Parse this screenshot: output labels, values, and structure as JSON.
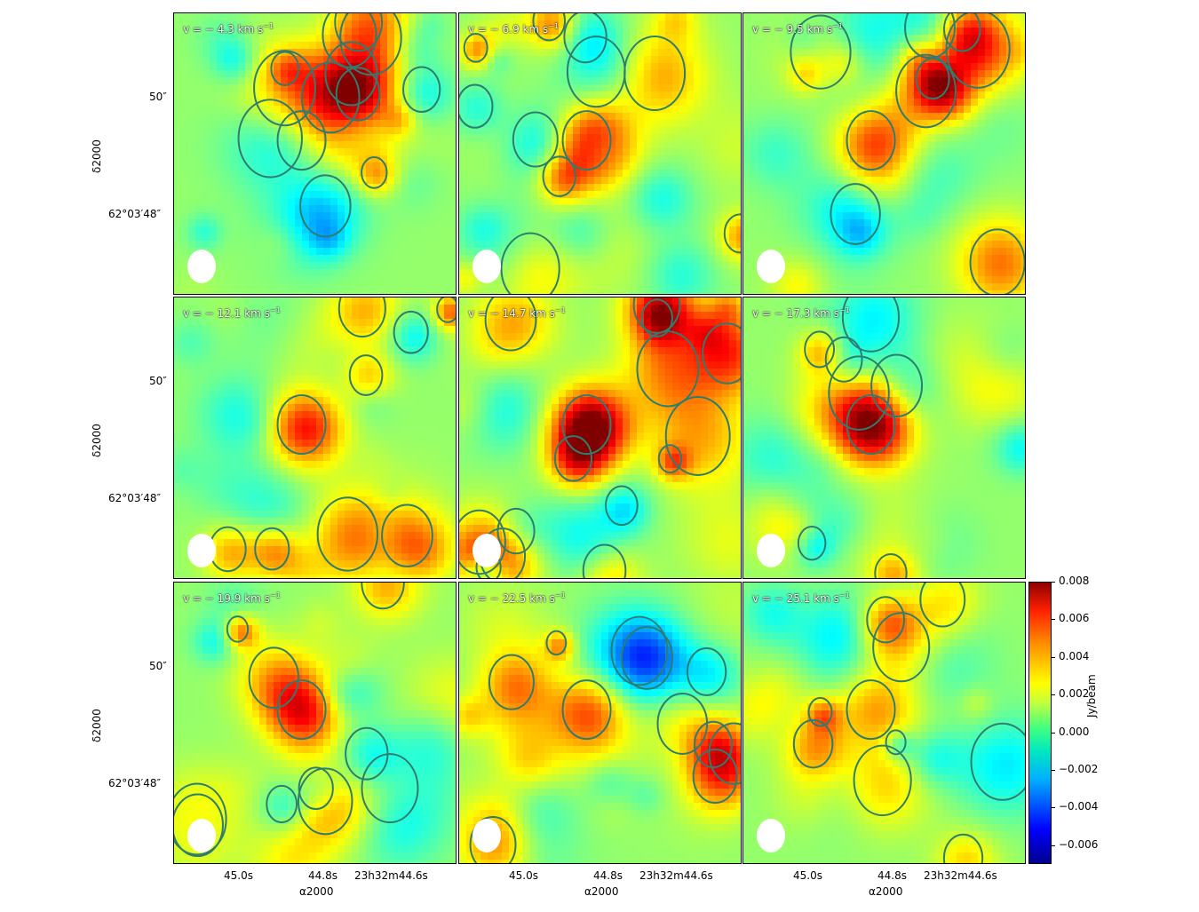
{
  "chart_data": {
    "type": "heatmap",
    "panel_labels": [
      "v = − 4.3 km s−1",
      "v = − 6.9 km s−1",
      "v = − 9.5 km s−1",
      "v = − 12.1 km s−1",
      "v = − 14.7 km s−1",
      "v = − 17.3 km s−1",
      "v = − 19.9 km s−1",
      "v = − 22.5 km s−1",
      "v = − 25.1 km s−1"
    ],
    "velocities_km_s": [
      -4.3,
      -6.9,
      -9.5,
      -12.1,
      -14.7,
      -17.3,
      -19.9,
      -22.5,
      -25.1
    ],
    "ytick_labels": [
      "50″",
      "62°03′48″"
    ],
    "xtick_labels": [
      "45.0s",
      "44.8s",
      "23h32m44.6s"
    ],
    "ylabel": "δ2000",
    "xlabel": "α2000",
    "colorbar": {
      "label": "Jy/beam",
      "ticks": [
        0.008,
        0.006,
        0.004,
        0.002,
        0.0,
        -0.002,
        -0.004,
        -0.006
      ],
      "tick_labels": [
        "0.008",
        "0.006",
        "0.004",
        "0.002",
        "0.000",
        "−0.002",
        "−0.004",
        "−0.006"
      ],
      "range": [
        -0.007,
        0.008
      ],
      "colormap": "jet"
    },
    "peak_emission_panel": "v = − 14.7 km s−1"
  },
  "v_prefix": "v = − ",
  "v_unit": " km s",
  "v_sup": "−1",
  "v_values": [
    "4.3",
    "6.9",
    "9.5",
    "12.1",
    "14.7",
    "17.3",
    "19.9",
    "22.5",
    "25.1"
  ],
  "colors": {
    "jet_low": "#00008f",
    "jet_mid": "#40ff80",
    "jet_high": "#8f0000",
    "contour": "#2e7d6e"
  }
}
